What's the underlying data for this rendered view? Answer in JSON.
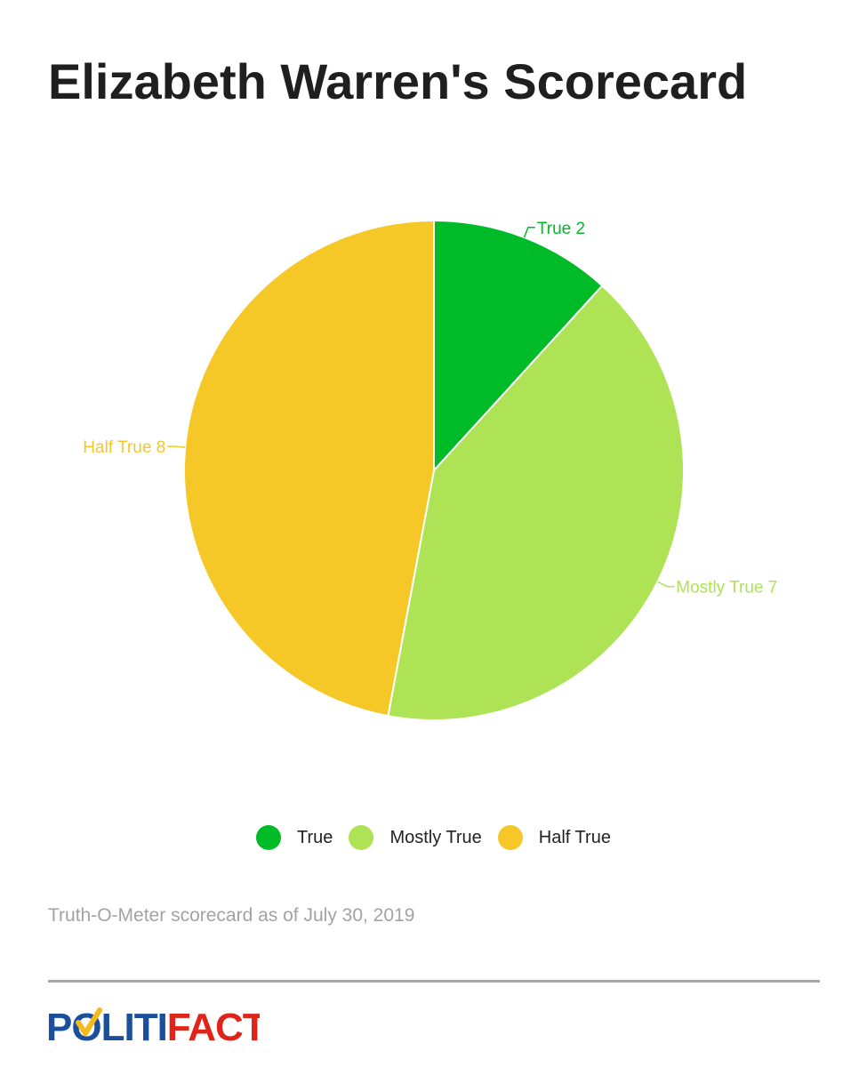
{
  "title": "Elizabeth Warren's Scorecard",
  "footnote": "Truth-O-Meter scorecard as of July 30, 2019",
  "logo": {
    "text": "POLITIFACT",
    "colors": {
      "blue": "#1b4f9c",
      "red": "#e2231a",
      "check": "#f5b91c"
    }
  },
  "chart_data": {
    "type": "pie",
    "title": "Elizabeth Warren's Scorecard",
    "slices": [
      {
        "name": "True",
        "value": 2,
        "color": "#00bb28"
      },
      {
        "name": "Mostly True",
        "value": 7,
        "color": "#aee356"
      },
      {
        "name": "Half True",
        "value": 8,
        "color": "#f5c727"
      }
    ],
    "legend": {
      "position": "bottom"
    }
  }
}
